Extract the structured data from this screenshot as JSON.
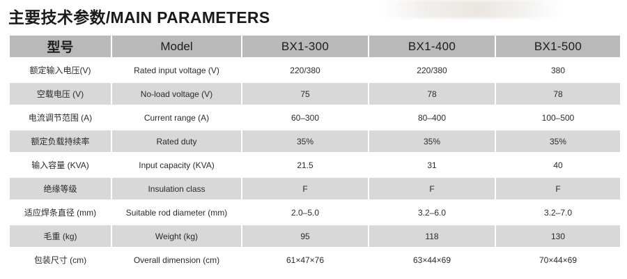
{
  "title": {
    "cn": "主要技术参数",
    "en": "/MAIN PARAMETERS"
  },
  "table": {
    "headers": {
      "cn": "型号",
      "en": "Model",
      "models": [
        "BX1-300",
        "BX1-400",
        "BX1-500"
      ]
    },
    "rows": [
      {
        "cn": "额定输入电压(V)",
        "en": "Rated input voltage (V)",
        "values": [
          "220/380",
          "220/380",
          "380"
        ]
      },
      {
        "cn": "空载电压 (V)",
        "en": "No-load voltage (V)",
        "values": [
          "75",
          "78",
          "78"
        ]
      },
      {
        "cn": "电流调节范围 (A)",
        "en": "Current range (A)",
        "values": [
          "60–300",
          "80–400",
          "100–500"
        ]
      },
      {
        "cn": "额定负载持续率",
        "en": "Rated duty",
        "values": [
          "35%",
          "35%",
          "35%"
        ]
      },
      {
        "cn": "输入容量 (KVA)",
        "en": "Input capacity (KVA)",
        "values": [
          "21.5",
          "31",
          "40"
        ]
      },
      {
        "cn": "绝缘等级",
        "en": "Insulation class",
        "values": [
          "F",
          "F",
          "F"
        ]
      },
      {
        "cn": "适应焊条直径 (mm)",
        "en": "Suitable rod diameter (mm)",
        "values": [
          "2.0–5.0",
          "3.2–6.0",
          "3.2–7.0"
        ]
      },
      {
        "cn": "毛重 (kg)",
        "en": "Weight (kg)",
        "values": [
          "95",
          "118",
          "130"
        ]
      },
      {
        "cn": "包装尺寸 (cm)",
        "en": "Overall dimension (cm)",
        "values": [
          "61×47×76",
          "63×44×69",
          "70×44×69"
        ]
      }
    ]
  }
}
